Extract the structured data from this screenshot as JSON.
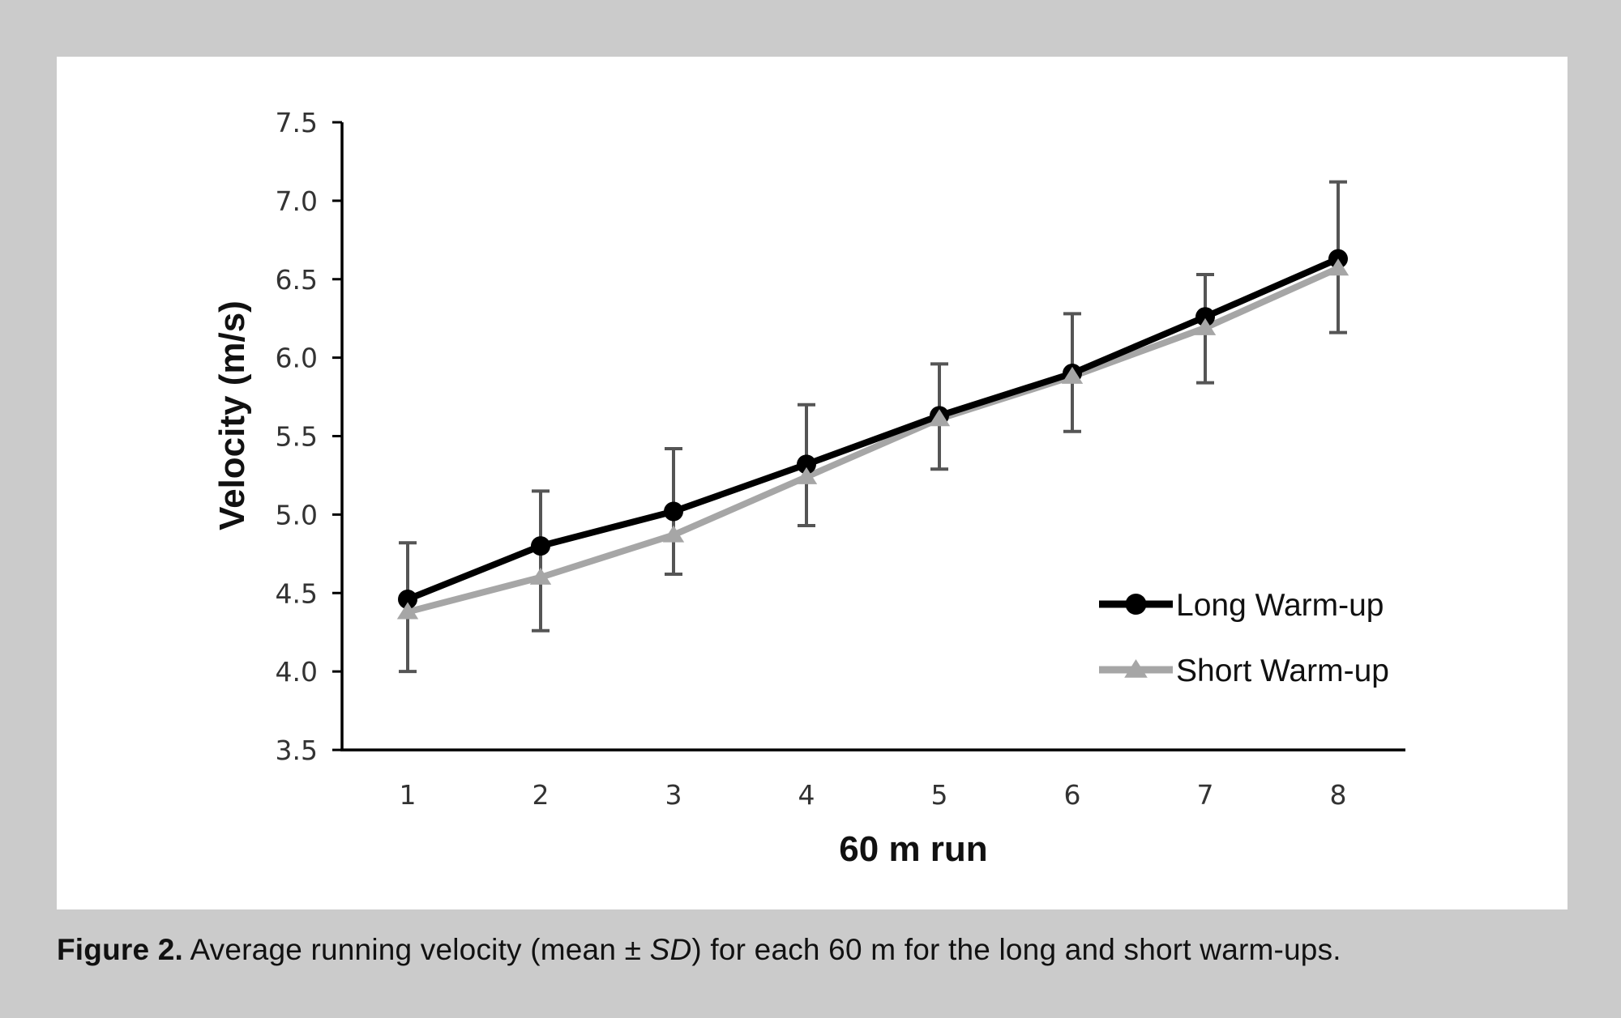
{
  "chart_data": {
    "type": "line",
    "x": [
      1,
      2,
      3,
      4,
      5,
      6,
      7,
      8
    ],
    "xlabel": "60 m run",
    "ylabel": "Velocity (m/s)",
    "ylim": [
      3.5,
      7.5
    ],
    "yticks": [
      "3.5",
      "4.0",
      "4.5",
      "5.0",
      "5.5",
      "6.0",
      "6.5",
      "7.0",
      "7.5"
    ],
    "xticks": [
      "1",
      "2",
      "3",
      "4",
      "5",
      "6",
      "7",
      "8"
    ],
    "grid": false,
    "legend_position": "bottom-right",
    "series": [
      {
        "name": "Long Warm-up",
        "values": [
          4.46,
          4.8,
          5.02,
          5.32,
          5.63,
          5.9,
          6.26,
          6.63
        ],
        "error_low": [
          4.0,
          4.26,
          4.62,
          4.93,
          5.29,
          5.53,
          5.84,
          6.16
        ],
        "error_high": [
          4.82,
          5.15,
          5.42,
          5.7,
          5.96,
          6.28,
          6.53,
          7.12
        ],
        "color": "#000000",
        "marker": "circle"
      },
      {
        "name": "Short Warm-up",
        "values": [
          4.38,
          4.6,
          4.87,
          5.24,
          5.61,
          5.88,
          6.19,
          6.57
        ],
        "color": "#a6a6a6",
        "marker": "triangle"
      }
    ]
  },
  "caption": {
    "lead": "Figure 2.",
    "text_before": "Average running velocity (mean ±",
    "sd": "SD",
    "text_after": ") for each 60 m for the long and short warm-ups."
  }
}
